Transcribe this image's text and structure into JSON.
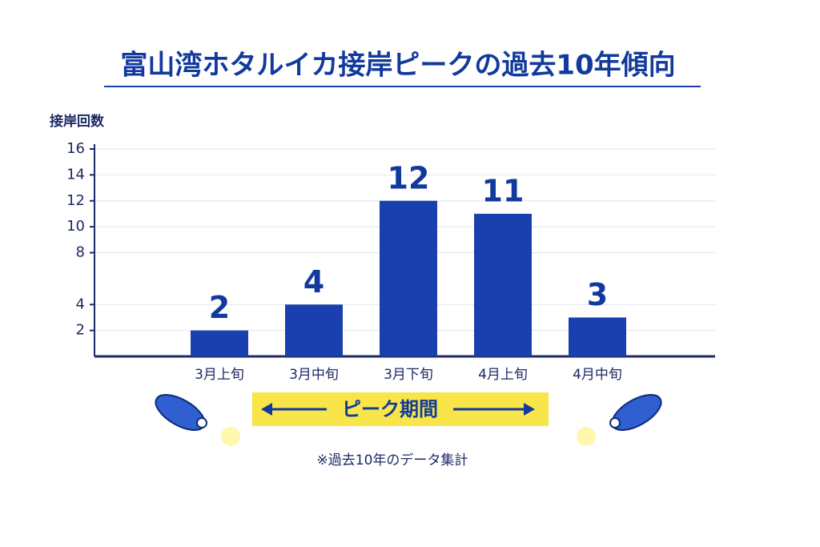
{
  "chart_data": {
    "type": "bar",
    "title": "富山湾ホタルイカ接岸ピークの過去10年傾向",
    "y_label": "接岸回数",
    "categories": [
      "3月上旬",
      "3月中旬",
      "3月下旬",
      "4月上旬",
      "4月中旬"
    ],
    "values": [
      2,
      4,
      12,
      11,
      3
    ],
    "color": "#1a3fae",
    "ylim": [
      0,
      16
    ],
    "yticks": [
      2,
      4,
      8,
      10,
      12,
      14,
      16
    ],
    "grid": true,
    "peak_label": "ピーク期間",
    "note": "※過去10年のデータ集計"
  }
}
